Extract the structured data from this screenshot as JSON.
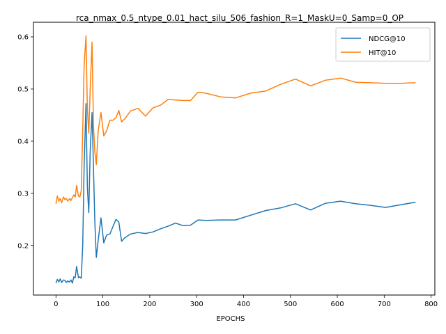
{
  "chart_data": {
    "type": "line",
    "title": "rca_nmax_0.5_ntype_0.01_hact_silu_506_fashion_R=1_MaskU=0_Samp=0_OP",
    "xlabel": "EPOCHS",
    "ylabel": "",
    "xlim": [
      -48,
      808
    ],
    "ylim": [
      0.105,
      0.628
    ],
    "xticks": [
      0,
      100,
      200,
      300,
      400,
      500,
      600,
      700,
      800
    ],
    "yticks": [
      0.2,
      0.3,
      0.4,
      0.5,
      0.6
    ],
    "grid": false,
    "legend_position": "top-right",
    "series": [
      {
        "name": "NDCG@10",
        "color": "#1f77b4",
        "x": [
          0,
          3,
          6,
          9,
          12,
          16,
          19,
          22,
          25,
          29,
          32,
          35,
          38,
          41,
          44,
          48,
          51,
          54,
          57,
          60,
          64,
          67,
          70,
          73,
          77,
          80,
          83,
          86,
          90,
          96,
          102,
          108,
          115,
          121,
          128,
          134,
          140,
          147,
          159,
          175,
          191,
          207,
          223,
          239,
          255,
          271,
          287,
          303,
          319,
          351,
          383,
          415,
          447,
          479,
          511,
          543,
          575,
          607,
          639,
          671,
          703,
          735,
          767
        ],
        "y": [
          0.128,
          0.135,
          0.13,
          0.136,
          0.129,
          0.134,
          0.133,
          0.129,
          0.132,
          0.13,
          0.134,
          0.128,
          0.14,
          0.138,
          0.16,
          0.138,
          0.14,
          0.137,
          0.2,
          0.35,
          0.472,
          0.31,
          0.263,
          0.38,
          0.455,
          0.35,
          0.245,
          0.177,
          0.21,
          0.253,
          0.205,
          0.22,
          0.222,
          0.235,
          0.25,
          0.245,
          0.208,
          0.215,
          0.222,
          0.225,
          0.223,
          0.226,
          0.232,
          0.237,
          0.243,
          0.238,
          0.239,
          0.249,
          0.248,
          0.249,
          0.249,
          0.258,
          0.267,
          0.272,
          0.28,
          0.268,
          0.281,
          0.285,
          0.28,
          0.277,
          0.273,
          0.278,
          0.283
        ]
      },
      {
        "name": "HIT@10",
        "color": "#ff7f0e",
        "x": [
          0,
          3,
          6,
          9,
          12,
          16,
          19,
          22,
          25,
          29,
          32,
          35,
          38,
          41,
          44,
          48,
          51,
          54,
          57,
          60,
          64,
          67,
          70,
          73,
          77,
          80,
          83,
          86,
          90,
          96,
          102,
          108,
          115,
          121,
          128,
          134,
          140,
          147,
          159,
          175,
          191,
          207,
          223,
          239,
          255,
          271,
          287,
          303,
          319,
          351,
          383,
          415,
          447,
          479,
          511,
          543,
          575,
          607,
          639,
          671,
          703,
          735,
          767
        ],
        "y": [
          0.28,
          0.295,
          0.285,
          0.29,
          0.282,
          0.293,
          0.288,
          0.29,
          0.285,
          0.29,
          0.286,
          0.292,
          0.297,
          0.293,
          0.315,
          0.295,
          0.293,
          0.305,
          0.42,
          0.545,
          0.602,
          0.46,
          0.415,
          0.5,
          0.59,
          0.43,
          0.38,
          0.355,
          0.42,
          0.455,
          0.41,
          0.42,
          0.44,
          0.44,
          0.445,
          0.459,
          0.437,
          0.443,
          0.458,
          0.463,
          0.448,
          0.464,
          0.469,
          0.48,
          0.479,
          0.478,
          0.478,
          0.494,
          0.492,
          0.485,
          0.483,
          0.492,
          0.496,
          0.509,
          0.519,
          0.506,
          0.517,
          0.521,
          0.513,
          0.512,
          0.511,
          0.511,
          0.512
        ]
      }
    ]
  }
}
